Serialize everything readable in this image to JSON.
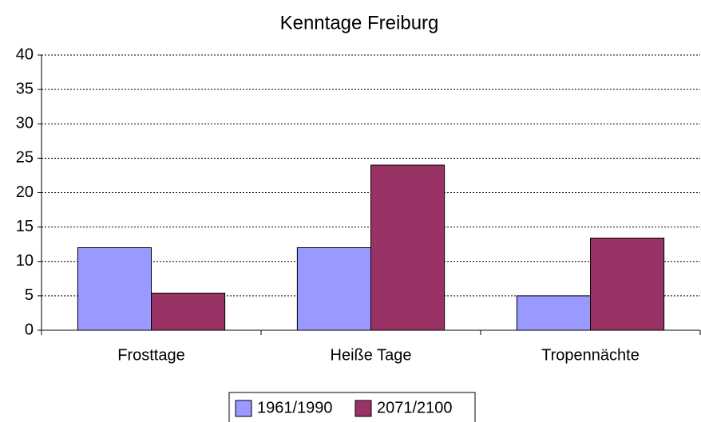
{
  "chart_data": {
    "type": "bar",
    "title": "Kenntage Freiburg",
    "categories": [
      "Frosttage",
      "Heiße Tage",
      "Tropennächte"
    ],
    "series": [
      {
        "name": "1961/1990",
        "color": "#9999ff",
        "values": [
          12,
          12,
          5
        ]
      },
      {
        "name": "2071/2100",
        "color": "#993366",
        "values": [
          5.4,
          24,
          13.4
        ]
      }
    ],
    "ylim": [
      0,
      40
    ],
    "yticks": [
      0,
      5,
      10,
      15,
      20,
      25,
      30,
      35,
      40
    ],
    "grid": true,
    "legend": "bottom"
  }
}
